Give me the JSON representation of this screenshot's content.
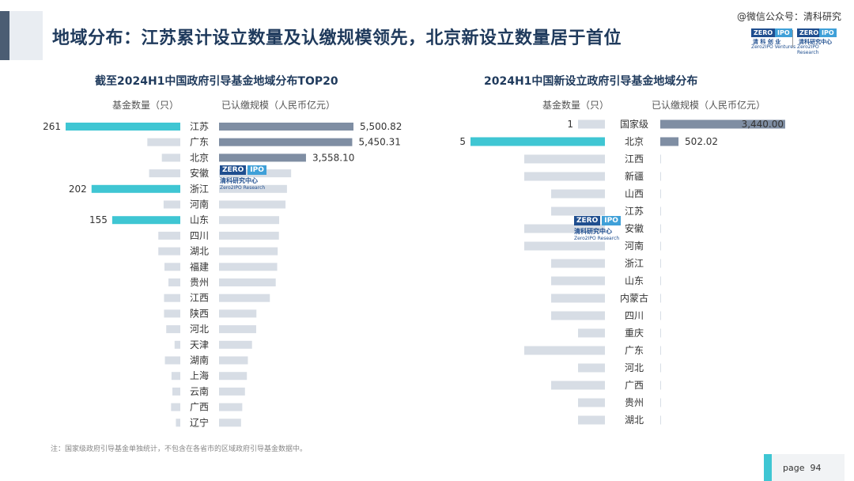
{
  "header": {
    "title": "地域分布：江苏累计设立数量及认缴规模领先，北京新设立数量居于首位",
    "wechat": "@微信公众号：清科研究",
    "logo_left": "ZERO",
    "logo_left_b": "IPO",
    "logo_left_cn": "清 科 创 业",
    "logo_left_en": "Zero2IPO Ventures",
    "logo_right": "ZERO",
    "logo_right_b": "IPO",
    "logo_right_cn": "清科研究中心",
    "logo_right_en": "Zero2IPO Research"
  },
  "watermark": {
    "box_a": "ZERO",
    "box_b": "IPO",
    "cn": "清科研究中心",
    "en": "Zero2IPO Research"
  },
  "footnote": "注：国家级政府引导基金单独统计，不包含在各省市的区域政府引导基金数据中。",
  "page": {
    "label": "page",
    "number": "94"
  },
  "colors": {
    "cyan": "#3fc6d3",
    "light": "#d7dde5",
    "steel": "#7f8ea3",
    "title": "#1f3a5c"
  },
  "chart_data": [
    {
      "type": "bar",
      "title": "截至2024H1中国政府引导基金地域分布TOP20",
      "left_header": "基金数量（只）",
      "right_header": "已认缴规模（人民币亿元）",
      "categories": [
        "江苏",
        "广东",
        "北京",
        "安徽",
        "浙江",
        "河南",
        "山东",
        "四川",
        "湖北",
        "福建",
        "贵州",
        "江西",
        "陕西",
        "河北",
        "天津",
        "湖南",
        "上海",
        "云南",
        "广西",
        "辽宁"
      ],
      "series": [
        {
          "values": [
            261,
            75,
            42,
            71,
            202,
            38,
            155,
            50,
            50,
            36,
            27,
            37,
            37,
            32,
            13,
            35,
            20,
            18,
            21,
            10
          ],
          "labels": [
            "261",
            "",
            "",
            "",
            "202",
            "",
            "155",
            "",
            "",
            "",
            "",
            "",
            "",
            "",
            "",
            "",
            "",
            "",
            "",
            ""
          ]
        },
        {
          "values": [
            5500.82,
            5450.31,
            3558.1,
            2950,
            2780,
            2720,
            2460,
            2450,
            2400,
            2380,
            2320,
            2080,
            1530,
            1520,
            1350,
            1180,
            1140,
            1060,
            950,
            900
          ],
          "labels": [
            "5,500.82",
            "5,450.31",
            "3,558.10",
            "",
            "",
            "",
            "",
            "",
            "",
            "",
            "",
            "",
            "",
            "",
            "",
            "",
            "",
            "",
            "",
            ""
          ]
        }
      ],
      "highlight": [
        "江苏",
        "浙江",
        "山东"
      ]
    },
    {
      "type": "bar",
      "title": "2024H1中国新设立政府引导基金地域分布",
      "left_header": "基金数量（只）",
      "right_header": "已认缴规模（人民币亿元）",
      "categories": [
        "国家级",
        "北京",
        "江西",
        "新疆",
        "山西",
        "江苏",
        "安徽",
        "河南",
        "浙江",
        "山东",
        "内蒙古",
        "四川",
        "重庆",
        "广东",
        "河北",
        "广西",
        "贵州",
        "湖北"
      ],
      "series": [
        {
          "values": [
            1,
            5,
            3,
            3,
            2,
            2,
            3,
            3,
            2,
            2,
            2,
            2,
            1,
            3,
            1,
            2,
            1,
            1
          ],
          "labels": [
            "1",
            "5",
            "",
            "",
            "",
            "",
            "",
            "",
            "",
            "",
            "",
            "",
            "",
            "",
            "",
            "",
            "",
            ""
          ]
        },
        {
          "values": [
            3440,
            502.02,
            2,
            2,
            1,
            1,
            1,
            1,
            1,
            1,
            1,
            1,
            1,
            1,
            1,
            1,
            1,
            1
          ],
          "labels": [
            "3,440.00",
            "502.02",
            "",
            "",
            "",
            "",
            "",
            "",
            "",
            "",
            "",
            "",
            "",
            "",
            "",
            "",
            "",
            ""
          ]
        }
      ],
      "highlight": [
        "北京"
      ]
    }
  ]
}
